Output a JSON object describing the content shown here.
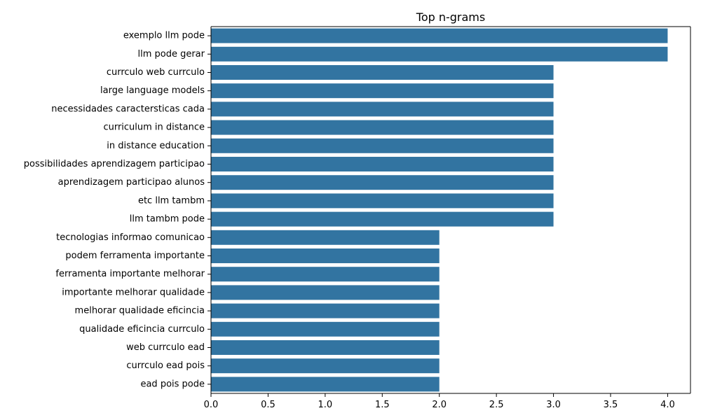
{
  "chart_data": {
    "type": "bar",
    "orientation": "horizontal",
    "title": "Top n-grams",
    "xlabel": "",
    "ylabel": "",
    "xlim": [
      0,
      4.2
    ],
    "x_ticks": [
      "0.0",
      "0.5",
      "1.0",
      "1.5",
      "2.0",
      "2.5",
      "3.0",
      "3.5",
      "4.0"
    ],
    "categories": [
      "exemplo llm pode",
      "llm pode gerar",
      "currculo web currculo",
      "large language models",
      "necessidades caractersticas cada",
      "curriculum in distance",
      "in distance education",
      "possibilidades aprendizagem participao",
      "aprendizagem participao alunos",
      "etc llm tambm",
      "llm tambm pode",
      "tecnologias informao comunicao",
      "podem ferramenta importante",
      "ferramenta importante melhorar",
      "importante melhorar qualidade",
      "melhorar qualidade eficincia",
      "qualidade eficincia currculo",
      "web currculo ead",
      "currculo ead pois",
      "ead pois pode"
    ],
    "values": [
      4,
      4,
      3,
      3,
      3,
      3,
      3,
      3,
      3,
      3,
      3,
      2,
      2,
      2,
      2,
      2,
      2,
      2,
      2,
      2
    ],
    "bar_color": "#3274a1",
    "grid": false,
    "legend": "none"
  }
}
